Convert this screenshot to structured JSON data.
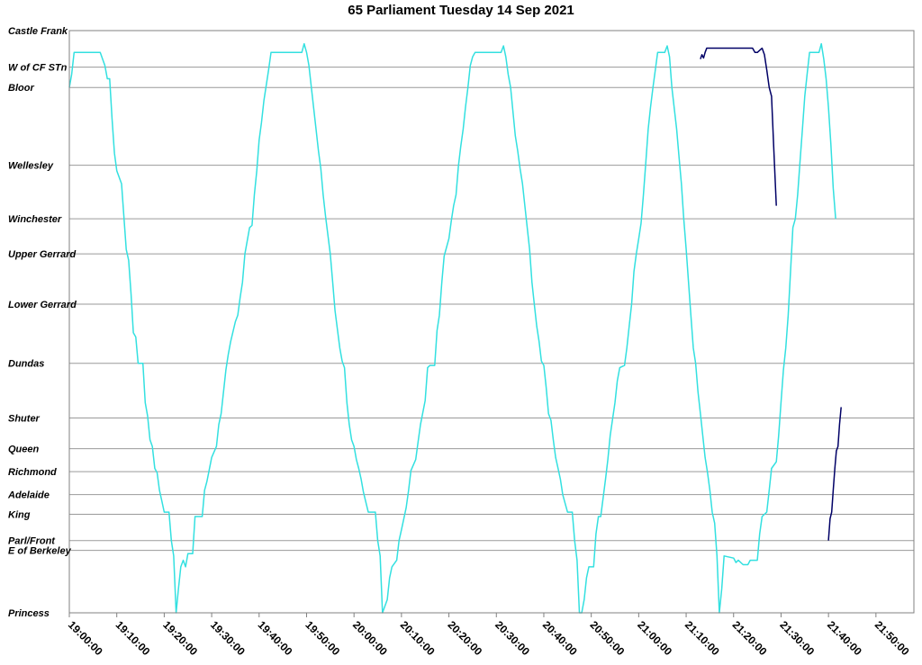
{
  "chart_data": {
    "type": "line",
    "title": "65 Parliament Tuesday 14 Sep 2021",
    "xlabel": "",
    "ylabel": "",
    "x_range": [
      "19:00:00",
      "21:58:00"
    ],
    "x_ticks": [
      "19:00:00",
      "19:10:00",
      "19:20:00",
      "19:30:00",
      "19:40:00",
      "19:50:00",
      "20:00:00",
      "20:10:00",
      "20:20:00",
      "20:30:00",
      "20:40:00",
      "20:50:00",
      "21:00:00",
      "21:10:00",
      "21:20:00",
      "21:30:00",
      "21:40:00",
      "21:50:00"
    ],
    "stops": [
      {
        "name": "Castle Frank",
        "pos": 0
      },
      {
        "name": "W of CF STn",
        "pos": 1.67
      },
      {
        "name": "Bloor",
        "pos": 2.6
      },
      {
        "name": "Wellesley",
        "pos": 6.15
      },
      {
        "name": "Winchester",
        "pos": 8.6
      },
      {
        "name": "Upper Gerrard",
        "pos": 10.2
      },
      {
        "name": "Lower Gerrard",
        "pos": 12.5
      },
      {
        "name": "Dundas",
        "pos": 15.2
      },
      {
        "name": "Shuter",
        "pos": 17.7
      },
      {
        "name": "Queen",
        "pos": 19.1
      },
      {
        "name": "Richmond",
        "pos": 20.15
      },
      {
        "name": "Adelaide",
        "pos": 21.2
      },
      {
        "name": "King",
        "pos": 22.1
      },
      {
        "name": "Parl/Front",
        "pos": 23.3
      },
      {
        "name": "E of Berkeley",
        "pos": 23.75
      },
      {
        "name": "Princess",
        "pos": 26.6
      }
    ],
    "grid": true,
    "series": [
      {
        "color": "#33e0e0",
        "points": [
          [
            "19:00:00",
            2.6
          ],
          [
            "19:00:30",
            2.0
          ],
          [
            "19:01:00",
            1.0
          ],
          [
            "19:06:30",
            1.0
          ],
          [
            "19:07:30",
            1.6
          ],
          [
            "19:08:00",
            2.2
          ],
          [
            "19:08:30",
            2.2
          ],
          [
            "19:09:00",
            4.0
          ],
          [
            "19:09:30",
            5.6
          ],
          [
            "19:10:00",
            6.4
          ],
          [
            "19:11:00",
            7.0
          ],
          [
            "19:11:30",
            8.5
          ],
          [
            "19:12:00",
            10.0
          ],
          [
            "19:12:30",
            10.5
          ],
          [
            "19:13:00",
            12.0
          ],
          [
            "19:13:30",
            13.8
          ],
          [
            "19:14:00",
            14.0
          ],
          [
            "19:14:30",
            15.2
          ],
          [
            "19:15:30",
            15.2
          ],
          [
            "19:16:00",
            17.0
          ],
          [
            "19:16:30",
            17.6
          ],
          [
            "19:17:00",
            18.7
          ],
          [
            "19:17:30",
            19.0
          ],
          [
            "19:18:00",
            20.0
          ],
          [
            "19:18:30",
            20.2
          ],
          [
            "19:19:00",
            21.0
          ],
          [
            "19:19:30",
            21.5
          ],
          [
            "19:20:00",
            22.0
          ],
          [
            "19:21:00",
            22.0
          ],
          [
            "19:21:30",
            23.3
          ],
          [
            "19:22:00",
            24.0
          ],
          [
            "19:22:30",
            26.6
          ],
          [
            "19:23:00",
            25.5
          ],
          [
            "19:23:30",
            24.5
          ],
          [
            "19:24:00",
            24.2
          ],
          [
            "19:24:30",
            24.5
          ],
          [
            "19:25:00",
            23.9
          ],
          [
            "19:26:00",
            23.9
          ],
          [
            "19:26:30",
            22.2
          ],
          [
            "19:28:00",
            22.2
          ],
          [
            "19:28:30",
            21.0
          ],
          [
            "19:29:00",
            20.6
          ],
          [
            "19:30:00",
            19.5
          ],
          [
            "19:31:00",
            19.0
          ],
          [
            "19:31:30",
            18.0
          ],
          [
            "19:32:00",
            17.5
          ],
          [
            "19:33:00",
            15.5
          ],
          [
            "19:33:30",
            14.8
          ],
          [
            "19:34:00",
            14.2
          ],
          [
            "19:35:00",
            13.3
          ],
          [
            "19:35:30",
            13.0
          ],
          [
            "19:36:00",
            12.2
          ],
          [
            "19:36:30",
            11.5
          ],
          [
            "19:37:00",
            10.2
          ],
          [
            "19:38:00",
            9.0
          ],
          [
            "19:38:30",
            8.9
          ],
          [
            "19:39:00",
            7.5
          ],
          [
            "19:39:30",
            6.4
          ],
          [
            "19:40:00",
            5.0
          ],
          [
            "19:40:30",
            4.2
          ],
          [
            "19:41:00",
            3.2
          ],
          [
            "19:41:30",
            2.5
          ],
          [
            "19:42:00",
            1.8
          ],
          [
            "19:42:30",
            1.0
          ],
          [
            "19:49:00",
            1.0
          ],
          [
            "19:49:30",
            0.6
          ],
          [
            "19:50:00",
            1.0
          ],
          [
            "19:50:30",
            1.6
          ],
          [
            "19:51:00",
            2.6
          ],
          [
            "19:52:00",
            4.5
          ],
          [
            "19:52:30",
            5.5
          ],
          [
            "19:53:00",
            6.3
          ],
          [
            "19:53:30",
            7.5
          ],
          [
            "19:54:00",
            8.5
          ],
          [
            "19:55:00",
            10.2
          ],
          [
            "19:55:30",
            11.5
          ],
          [
            "19:56:00",
            12.8
          ],
          [
            "19:57:00",
            14.5
          ],
          [
            "19:57:30",
            15.1
          ],
          [
            "19:58:00",
            15.4
          ],
          [
            "19:58:30",
            17.0
          ],
          [
            "19:59:00",
            18.0
          ],
          [
            "19:59:30",
            18.7
          ],
          [
            "20:00:00",
            19.0
          ],
          [
            "20:00:30",
            19.6
          ],
          [
            "20:01:00",
            20.0
          ],
          [
            "20:01:30",
            20.5
          ],
          [
            "20:02:00",
            21.1
          ],
          [
            "20:03:00",
            22.0
          ],
          [
            "20:04:30",
            22.0
          ],
          [
            "20:05:00",
            23.3
          ],
          [
            "20:05:30",
            24.0
          ],
          [
            "20:06:00",
            26.6
          ],
          [
            "20:07:00",
            26.0
          ],
          [
            "20:07:30",
            25.0
          ],
          [
            "20:08:00",
            24.5
          ],
          [
            "20:09:00",
            24.2
          ],
          [
            "20:09:30",
            23.3
          ],
          [
            "20:10:00",
            22.8
          ],
          [
            "20:11:00",
            21.8
          ],
          [
            "20:11:30",
            21.0
          ],
          [
            "20:12:00",
            20.1
          ],
          [
            "20:13:00",
            19.6
          ],
          [
            "20:13:30",
            18.8
          ],
          [
            "20:14:00",
            18.0
          ],
          [
            "20:15:00",
            16.9
          ],
          [
            "20:15:30",
            15.4
          ],
          [
            "20:16:00",
            15.3
          ],
          [
            "20:17:00",
            15.3
          ],
          [
            "20:17:30",
            13.7
          ],
          [
            "20:18:00",
            13.0
          ],
          [
            "20:18:30",
            11.5
          ],
          [
            "20:19:00",
            10.3
          ],
          [
            "20:20:00",
            9.5
          ],
          [
            "20:20:30",
            8.7
          ],
          [
            "20:21:00",
            8.0
          ],
          [
            "20:21:30",
            7.5
          ],
          [
            "20:22:00",
            6.2
          ],
          [
            "20:22:30",
            5.3
          ],
          [
            "20:23:00",
            4.5
          ],
          [
            "20:23:30",
            3.5
          ],
          [
            "20:24:00",
            2.6
          ],
          [
            "20:24:30",
            1.6
          ],
          [
            "20:25:00",
            1.2
          ],
          [
            "20:25:30",
            1.0
          ],
          [
            "20:31:00",
            1.0
          ],
          [
            "20:31:30",
            0.7
          ],
          [
            "20:32:00",
            1.2
          ],
          [
            "20:32:30",
            2.0
          ],
          [
            "20:33:00",
            2.6
          ],
          [
            "20:34:00",
            4.8
          ],
          [
            "20:34:30",
            5.5
          ],
          [
            "20:35:00",
            6.3
          ],
          [
            "20:35:30",
            7.0
          ],
          [
            "20:36:00",
            8.0
          ],
          [
            "20:37:00",
            10.0
          ],
          [
            "20:37:30",
            11.5
          ],
          [
            "20:38:00",
            12.5
          ],
          [
            "20:38:30",
            13.5
          ],
          [
            "20:39:00",
            14.2
          ],
          [
            "20:39:30",
            15.1
          ],
          [
            "20:40:00",
            15.3
          ],
          [
            "20:40:30",
            16.3
          ],
          [
            "20:41:00",
            17.5
          ],
          [
            "20:41:30",
            17.8
          ],
          [
            "20:42:00",
            18.7
          ],
          [
            "20:42:30",
            19.5
          ],
          [
            "20:43:00",
            20.0
          ],
          [
            "20:43:30",
            20.5
          ],
          [
            "20:44:00",
            21.2
          ],
          [
            "20:45:00",
            22.0
          ],
          [
            "20:46:00",
            22.0
          ],
          [
            "20:46:30",
            23.3
          ],
          [
            "20:47:00",
            24.2
          ],
          [
            "20:47:30",
            26.6
          ],
          [
            "20:48:00",
            26.6
          ],
          [
            "20:48:30",
            26.0
          ],
          [
            "20:49:00",
            25.0
          ],
          [
            "20:49:30",
            24.5
          ],
          [
            "20:50:30",
            24.5
          ],
          [
            "20:51:00",
            23.0
          ],
          [
            "20:51:30",
            22.2
          ],
          [
            "20:52:00",
            22.2
          ],
          [
            "20:53:00",
            20.5
          ],
          [
            "20:53:30",
            19.6
          ],
          [
            "20:54:00",
            18.5
          ],
          [
            "20:55:00",
            17.0
          ],
          [
            "20:55:30",
            16.0
          ],
          [
            "20:56:00",
            15.4
          ],
          [
            "20:57:00",
            15.3
          ],
          [
            "20:57:30",
            14.5
          ],
          [
            "20:58:00",
            13.5
          ],
          [
            "20:58:30",
            12.5
          ],
          [
            "20:59:00",
            11.0
          ],
          [
            "20:59:30",
            10.2
          ],
          [
            "21:00:00",
            9.5
          ],
          [
            "21:00:30",
            8.8
          ],
          [
            "21:01:00",
            7.5
          ],
          [
            "21:01:30",
            6.0
          ],
          [
            "21:02:00",
            4.5
          ],
          [
            "21:02:30",
            3.5
          ],
          [
            "21:03:00",
            2.6
          ],
          [
            "21:03:30",
            1.8
          ],
          [
            "21:04:00",
            1.0
          ],
          [
            "21:05:30",
            1.0
          ],
          [
            "21:06:00",
            0.7
          ],
          [
            "21:06:30",
            1.2
          ],
          [
            "21:07:00",
            2.6
          ],
          [
            "21:08:00",
            4.5
          ],
          [
            "21:08:30",
            5.8
          ],
          [
            "21:09:00",
            7.0
          ],
          [
            "21:09:30",
            8.6
          ],
          [
            "21:10:00",
            10.0
          ],
          [
            "21:10:30",
            11.5
          ],
          [
            "21:11:00",
            13.0
          ],
          [
            "21:11:30",
            14.5
          ],
          [
            "21:12:00",
            15.2
          ],
          [
            "21:12:30",
            16.5
          ],
          [
            "21:13:00",
            17.5
          ],
          [
            "21:13:30",
            18.5
          ],
          [
            "21:14:00",
            19.5
          ],
          [
            "21:14:30",
            20.2
          ],
          [
            "21:15:00",
            21.0
          ],
          [
            "21:15:30",
            22.0
          ],
          [
            "21:16:00",
            22.5
          ],
          [
            "21:16:30",
            24.0
          ],
          [
            "21:17:00",
            26.6
          ],
          [
            "21:17:30",
            25.5
          ],
          [
            "21:18:00",
            24.0
          ],
          [
            "21:20:00",
            24.1
          ],
          [
            "21:20:30",
            24.3
          ],
          [
            "21:21:00",
            24.2
          ],
          [
            "21:22:00",
            24.4
          ],
          [
            "21:23:00",
            24.4
          ],
          [
            "21:23:30",
            24.2
          ],
          [
            "21:25:00",
            24.2
          ],
          [
            "21:25:30",
            23.0
          ],
          [
            "21:26:00",
            22.2
          ],
          [
            "21:27:00",
            22.0
          ],
          [
            "21:27:30",
            21.0
          ],
          [
            "21:28:00",
            20.0
          ],
          [
            "21:29:00",
            19.7
          ],
          [
            "21:29:30",
            18.5
          ],
          [
            "21:30:00",
            17.0
          ],
          [
            "21:30:30",
            15.5
          ],
          [
            "21:31:00",
            14.5
          ],
          [
            "21:31:30",
            13.0
          ],
          [
            "21:32:00",
            11.0
          ],
          [
            "21:32:30",
            9.0
          ],
          [
            "21:33:00",
            8.6
          ],
          [
            "21:33:30",
            7.5
          ],
          [
            "21:34:00",
            6.0
          ],
          [
            "21:34:30",
            4.5
          ],
          [
            "21:35:00",
            3.0
          ],
          [
            "21:35:30",
            2.0
          ],
          [
            "21:36:00",
            1.0
          ],
          [
            "21:38:00",
            1.0
          ],
          [
            "21:38:30",
            0.6
          ],
          [
            "21:39:00",
            1.3
          ],
          [
            "21:39:30",
            2.2
          ],
          [
            "21:40:00",
            3.5
          ],
          [
            "21:40:30",
            5.2
          ],
          [
            "21:41:00",
            7.2
          ],
          [
            "21:41:30",
            8.6
          ]
        ]
      },
      {
        "color": "#000066",
        "points": [
          [
            "21:13:00",
            1.3
          ],
          [
            "21:13:20",
            1.1
          ],
          [
            "21:13:40",
            1.25
          ],
          [
            "21:14:00",
            1.0
          ],
          [
            "21:14:20",
            0.8
          ],
          [
            "21:15:00",
            0.8
          ],
          [
            "21:23:00",
            0.8
          ],
          [
            "21:24:00",
            0.8
          ],
          [
            "21:24:30",
            1.0
          ],
          [
            "21:25:00",
            1.0
          ],
          [
            "21:25:30",
            0.9
          ],
          [
            "21:26:00",
            0.8
          ],
          [
            "21:26:30",
            1.1
          ],
          [
            "21:27:00",
            1.8
          ],
          [
            "21:27:30",
            2.6
          ],
          [
            "21:28:00",
            3.0
          ],
          [
            "21:28:30",
            5.5
          ],
          [
            "21:29:00",
            8.0
          ]
        ]
      },
      {
        "color": "#000066",
        "points": [
          [
            "21:40:00",
            23.3
          ],
          [
            "21:40:20",
            22.3
          ],
          [
            "21:40:40",
            22.0
          ],
          [
            "21:41:00",
            21.0
          ],
          [
            "21:41:20",
            20.0
          ],
          [
            "21:41:40",
            19.2
          ],
          [
            "21:42:00",
            19.0
          ],
          [
            "21:42:20",
            18.0
          ],
          [
            "21:42:40",
            17.2
          ]
        ]
      }
    ]
  }
}
